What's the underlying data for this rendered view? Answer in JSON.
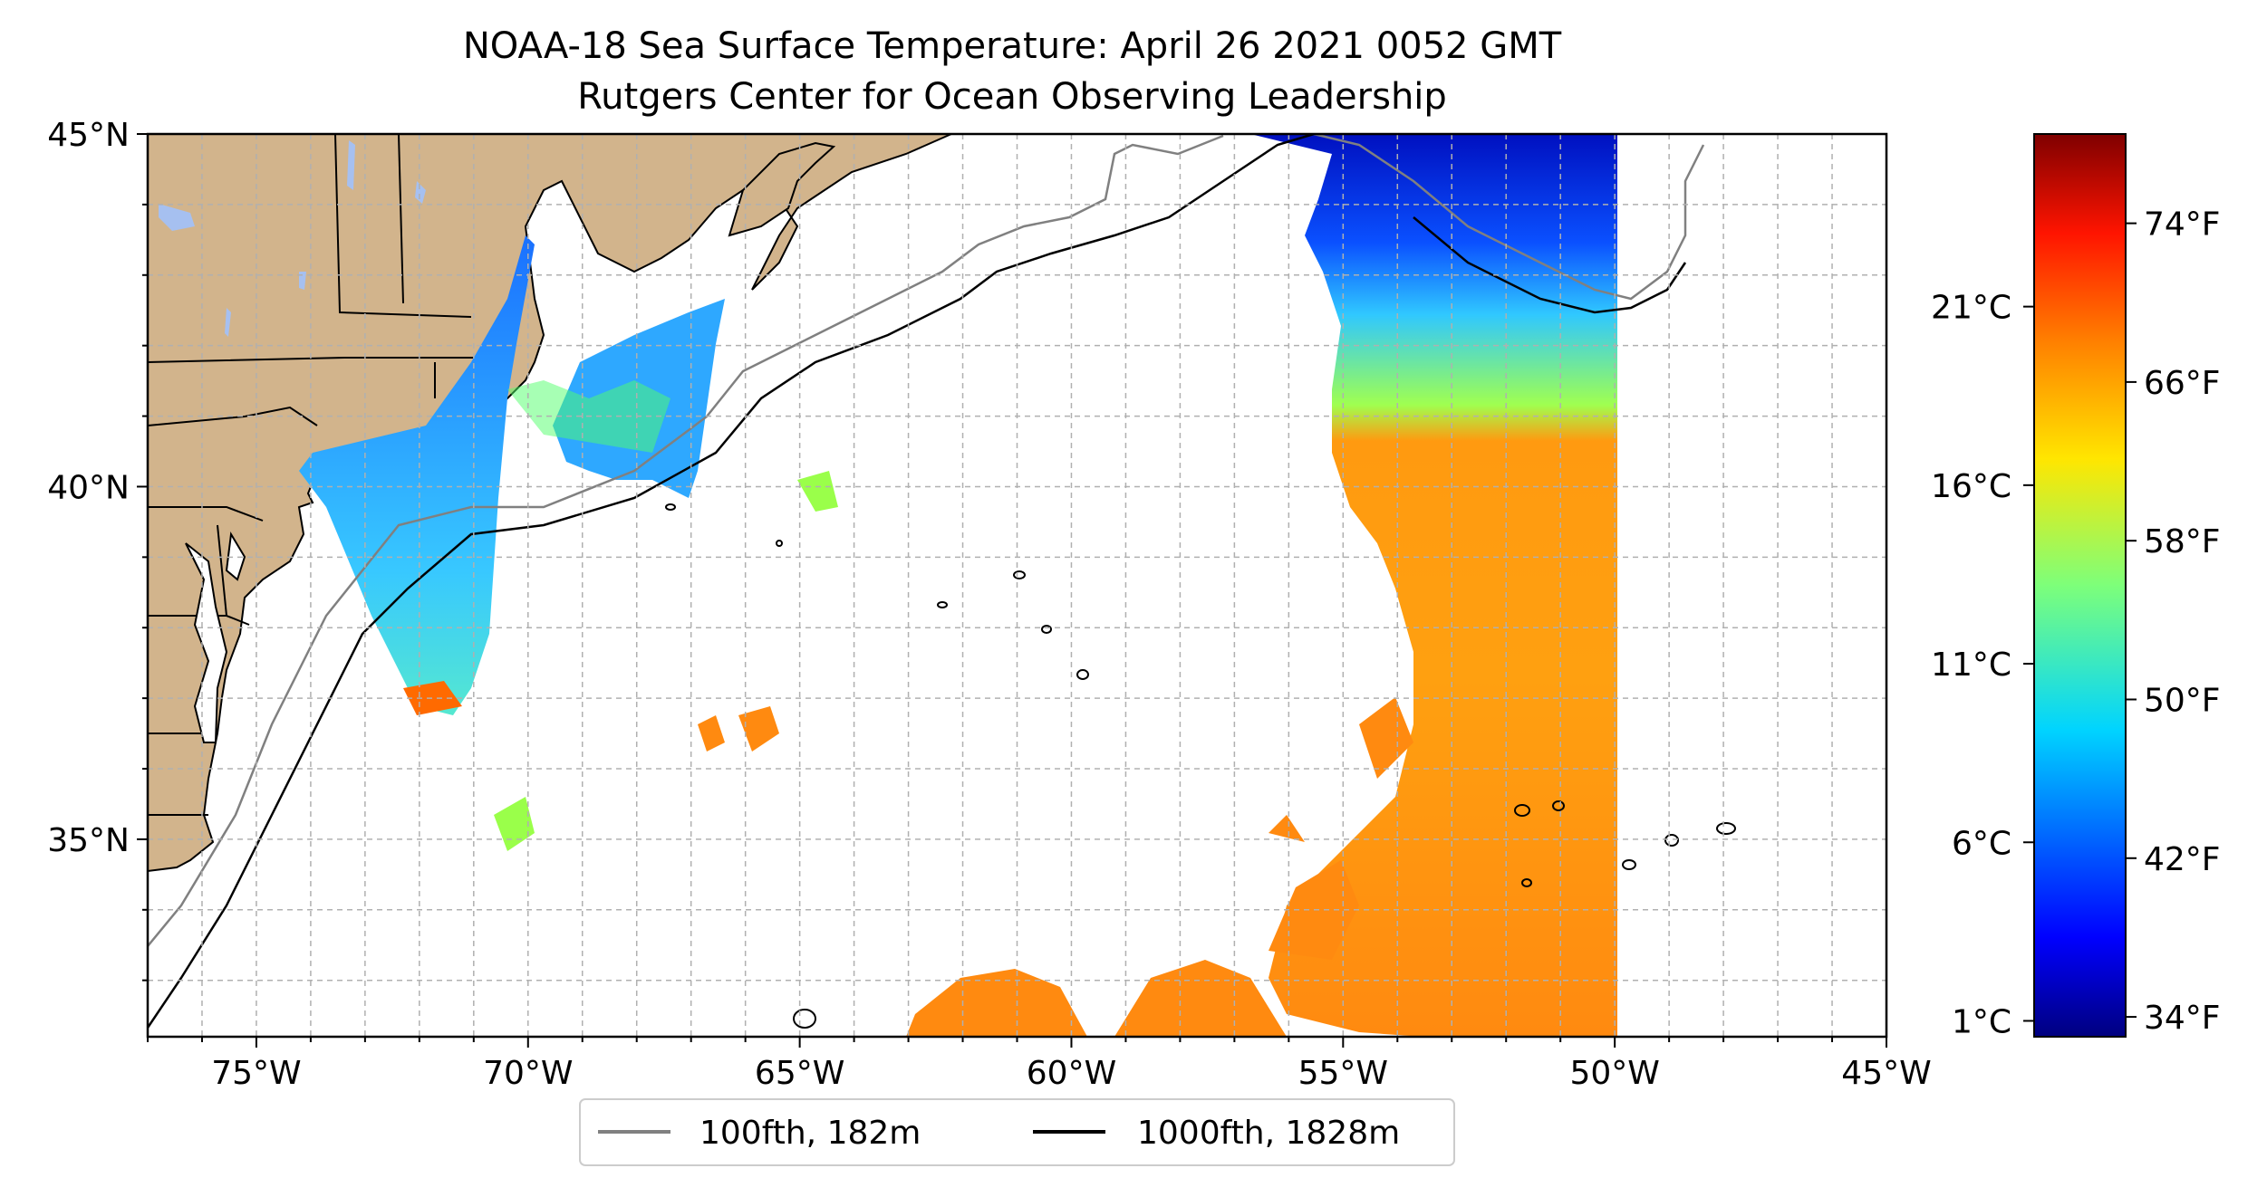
{
  "title": {
    "line1": "NOAA-18 Sea Surface Temperature: April 26 2021 0052 GMT",
    "line2": "Rutgers Center for Ocean Observing Leadership"
  },
  "map": {
    "lat_ticks": [
      {
        "value": 45,
        "label": "45°N"
      },
      {
        "value": 40,
        "label": "40°N"
      },
      {
        "value": 35,
        "label": "35°N"
      }
    ],
    "lon_ticks": [
      {
        "value": -75,
        "label": "75°W"
      },
      {
        "value": -70,
        "label": "70°W"
      },
      {
        "value": -65,
        "label": "65°W"
      },
      {
        "value": -60,
        "label": "60°W"
      },
      {
        "value": -55,
        "label": "55°W"
      },
      {
        "value": -50,
        "label": "50°W"
      },
      {
        "value": -45,
        "label": "45°W"
      }
    ],
    "extent": {
      "lon_min": -77,
      "lon_max": -45,
      "lat_min": 32.2,
      "lat_max": 45
    },
    "land_color": "#d2b48c",
    "lake_color": "#a6c0f0",
    "contour_100_color": "#808080",
    "contour_1000_color": "#000000"
  },
  "legend": {
    "entries": [
      {
        "label": "100fth, 182m",
        "color": "#808080"
      },
      {
        "label": "1000fth, 1828m",
        "color": "#000000"
      }
    ]
  },
  "colorbar": {
    "celsius_ticks": [
      "21°C",
      "16°C",
      "11°C",
      "6°C",
      "1°C"
    ],
    "fahrenheit_ticks": [
      "74°F",
      "66°F",
      "58°F",
      "50°F",
      "42°F",
      "34°F"
    ],
    "colormap": "jet",
    "celsius_values": [
      21,
      16,
      11,
      6,
      1
    ],
    "fahrenheit_values": [
      74,
      66,
      58,
      50,
      42,
      34
    ]
  }
}
